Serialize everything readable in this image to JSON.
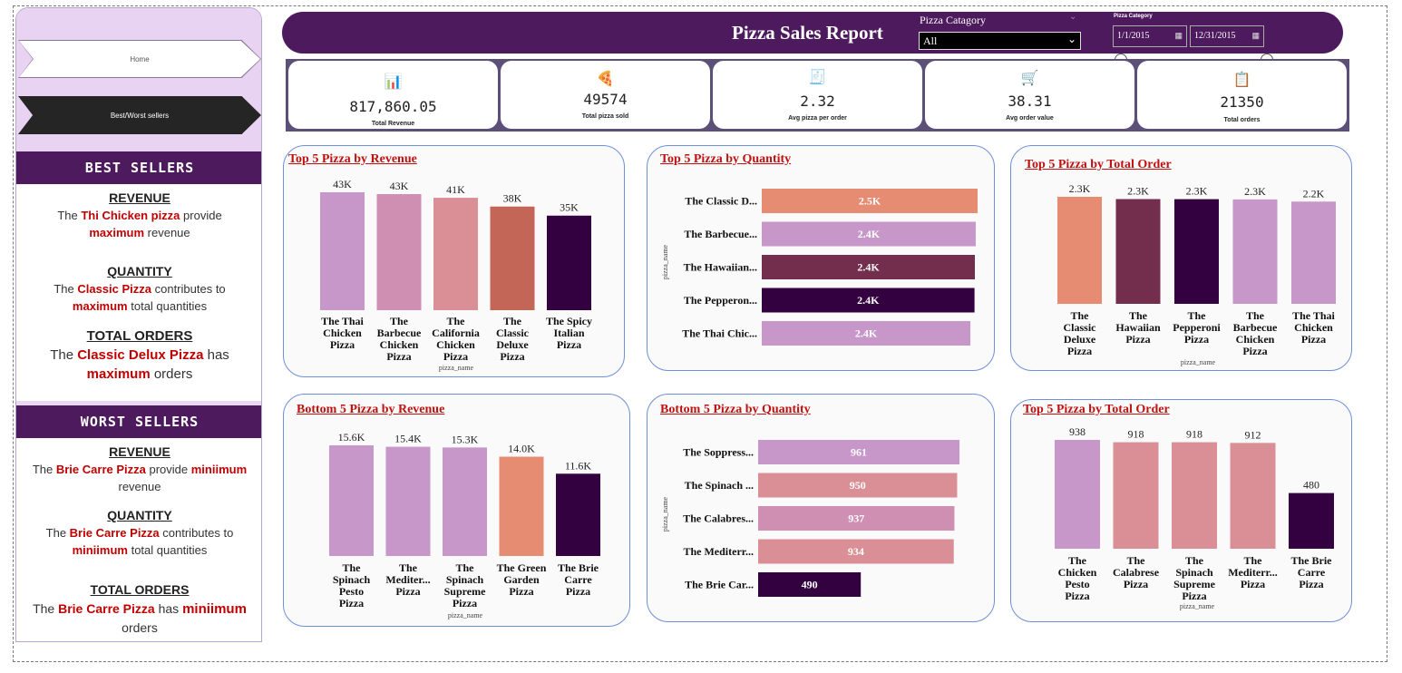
{
  "sidebar": {
    "nav": {
      "home": "Home",
      "best_worst": "Best/Worst sellers"
    },
    "best": {
      "header": "BEST SELLERS",
      "revenue": {
        "title": "REVENUE",
        "p1": "The ",
        "hl": "Thi Chicken pizza",
        "p2": "  provide",
        "hl2": "maximum",
        "p3": " revenue"
      },
      "quantity": {
        "title": "QUANTITY",
        "p1": "The ",
        "hl": "Classic Pizza",
        "p2": " contributes to",
        "hl2": "maximum",
        "p3": " total quantities"
      },
      "orders": {
        "title": "TOTAL ORDERS",
        "p1": "The ",
        "hl": "Classic Delux Pizza",
        "p2": " has",
        "hl2": "maximum",
        "p3": " orders"
      }
    },
    "worst": {
      "header": "WORST SELLERS",
      "revenue": {
        "title": "REVENUE",
        "p1": "The ",
        "hl": "Brie Carre Pizza",
        "p2": "  provide ",
        "hl2": "miniimum",
        "p3": "revenue"
      },
      "quantity": {
        "title": "QUANTITY",
        "p1": "The ",
        "hl": "Brie Carre Pizza",
        "p2": " contributes to",
        "hl2": "miniimum",
        "p3": " total quantities"
      },
      "orders": {
        "title": "TOTAL ORDERS",
        "p1": "The ",
        "hl": "Brie Carre Pizza",
        "p2": " has ",
        "hl2": "miniimum",
        "p3": "orders"
      }
    }
  },
  "header": {
    "title": "Pizza Sales Report",
    "category_label": "Pizza Catagory",
    "category_value": "All",
    "date_label": "Pizza Category",
    "date_start": "1/1/2015",
    "date_end": "12/31/2015"
  },
  "kpis": [
    {
      "icon": "revenue-chart-icon",
      "glyph": "📊",
      "value": "817,860.05",
      "label": "Total Revenue"
    },
    {
      "icon": "pizza-icon",
      "glyph": "🍕",
      "value": "49574",
      "label": "Total pizza sold"
    },
    {
      "icon": "report-icon",
      "glyph": "🧾",
      "value": "2.32",
      "label": "Avg pizza per order"
    },
    {
      "icon": "cart-icon",
      "glyph": "🛒",
      "value": "38.31",
      "label": "Avg order value"
    },
    {
      "icon": "clipboard-icon",
      "glyph": "📋",
      "value": "21350",
      "label": "Total orders"
    }
  ],
  "colors": {
    "purple_dark": "#4e1a5e",
    "bar_lilac": "#c797c9",
    "bar_mauve": "#cf8fb3",
    "bar_rose": "#d98f95",
    "bar_salmon": "#e58c72",
    "bar_terracotta": "#c46657",
    "bar_wine": "#732d4d",
    "bar_deep": "#330040",
    "title_red": "#c01010"
  },
  "chart_data": [
    {
      "id": "top-revenue",
      "type": "bar",
      "title": "Top 5 Pizza by Revenue",
      "xlabel": "pizza_name",
      "ylabel": "",
      "categories": [
        "The Thai Chicken Pizza",
        "The Barbecue Chicken Pizza",
        "The California Chicken Pizza",
        "The Classic Deluxe Pizza",
        "The Spicy Italian Pizza"
      ],
      "values": [
        43434,
        42768,
        41410,
        38181,
        34831
      ],
      "labels": [
        "43K",
        "43K",
        "41K",
        "38K",
        "35K"
      ],
      "colors": [
        "#c797c9",
        "#cf8fb3",
        "#d98f95",
        "#c46657",
        "#330040"
      ]
    },
    {
      "id": "top-quantity",
      "type": "bar",
      "orientation": "horizontal",
      "title": "Top 5 Pizza by Quantity",
      "xlabel": "",
      "ylabel": "pizza_name",
      "categories": [
        "The Classic D...",
        "The Barbecue...",
        "The Hawaiian...",
        "The Pepperon...",
        "The Thai Chic..."
      ],
      "values": [
        2453,
        2432,
        2422,
        2418,
        2371
      ],
      "labels": [
        "2.5K",
        "2.4K",
        "2.4K",
        "2.4K",
        "2.4K"
      ],
      "colors": [
        "#e58c72",
        "#c797c9",
        "#732d4d",
        "#330040",
        "#c797c9"
      ]
    },
    {
      "id": "top-orders",
      "type": "bar",
      "title": "Top 5 Pizza by Total Order",
      "xlabel": "pizza_name",
      "ylabel": "",
      "categories": [
        "The Classic Deluxe Pizza",
        "The Hawaiian Pizza",
        "The Pepperoni Pizza",
        "The Barbecue Chicken Pizza",
        "The Thai Chicken Pizza"
      ],
      "values": [
        2329,
        2280,
        2278,
        2273,
        2225
      ],
      "labels": [
        "2.3K",
        "2.3K",
        "2.3K",
        "2.3K",
        "2.2K"
      ],
      "colors": [
        "#e58c72",
        "#732d4d",
        "#330040",
        "#c797c9",
        "#c797c9"
      ]
    },
    {
      "id": "bottom-revenue",
      "type": "bar",
      "title": "Bottom 5 Pizza by Revenue",
      "xlabel": "pizza_name",
      "ylabel": "",
      "categories": [
        "The Spinach Pesto Pizza",
        "The Mediter... Pizza",
        "The Spinach Supreme Pizza",
        "The Green Garden Pizza",
        "The Brie Carre Pizza"
      ],
      "values": [
        15600,
        15400,
        15300,
        14000,
        11600
      ],
      "labels": [
        "15.6K",
        "15.4K",
        "15.3K",
        "14.0K",
        "11.6K"
      ],
      "colors": [
        "#c797c9",
        "#c797c9",
        "#c797c9",
        "#e58c72",
        "#330040"
      ]
    },
    {
      "id": "bottom-quantity",
      "type": "bar",
      "orientation": "horizontal",
      "title": "Bottom 5 Pizza by Quantity",
      "xlabel": "",
      "ylabel": "pizza_name",
      "categories": [
        "The Soppress...",
        "The Spinach ...",
        "The Calabres...",
        "The Mediterr...",
        "The Brie Car..."
      ],
      "values": [
        961,
        950,
        937,
        934,
        490
      ],
      "labels": [
        "961",
        "950",
        "937",
        "934",
        "490"
      ],
      "colors": [
        "#c797c9",
        "#d98f95",
        "#cf8fb3",
        "#d98f95",
        "#330040"
      ]
    },
    {
      "id": "bottom-orders",
      "type": "bar",
      "title": "Top 5 Pizza by Total Order",
      "xlabel": "pizza_name",
      "ylabel": "",
      "categories": [
        "The Chicken Pesto Pizza",
        "The Calabrese Pizza",
        "The Spinach Supreme Pizza",
        "The Mediterr... Pizza",
        "The Brie Carre Pizza"
      ],
      "values": [
        938,
        918,
        918,
        912,
        480
      ],
      "labels": [
        "938",
        "918",
        "918",
        "912",
        "480"
      ],
      "colors": [
        "#c797c9",
        "#d98f95",
        "#d98f95",
        "#d98f95",
        "#330040"
      ]
    }
  ]
}
